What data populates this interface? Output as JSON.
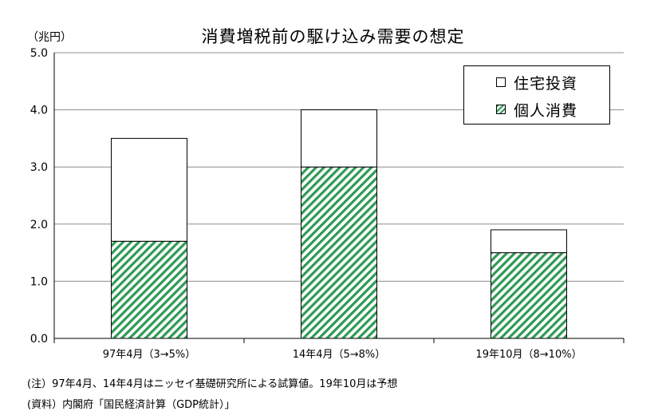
{
  "unit_label": "（兆円）",
  "notes": [
    "(注）97年4月、14年4月はニッセイ基礎研究所による試算値。19年10月は予想",
    "(資料）内閣府「国民経済計算（GDP統計）」"
  ],
  "chart_data": {
    "type": "bar",
    "stacked": true,
    "title": "消費増税前の駆け込み需要の想定",
    "categories": [
      "97年4月（3→5%）",
      "14年4月（5→8%）",
      "19年10月（8→10%）"
    ],
    "series": [
      {
        "name": "個人消費",
        "values": [
          1.7,
          3.0,
          1.5
        ],
        "color": "#2e9a55",
        "pattern": "diagonal-hatch"
      },
      {
        "name": "住宅投資",
        "values": [
          1.8,
          1.0,
          0.4
        ],
        "color": "#ffffff"
      }
    ],
    "legend_order": [
      "住宅投資",
      "個人消費"
    ],
    "ylim": [
      0,
      5
    ],
    "yticks": [
      "0.0",
      "1.0",
      "2.0",
      "3.0",
      "4.0",
      "5.0"
    ],
    "grid": true,
    "legend_position": "top-right"
  }
}
